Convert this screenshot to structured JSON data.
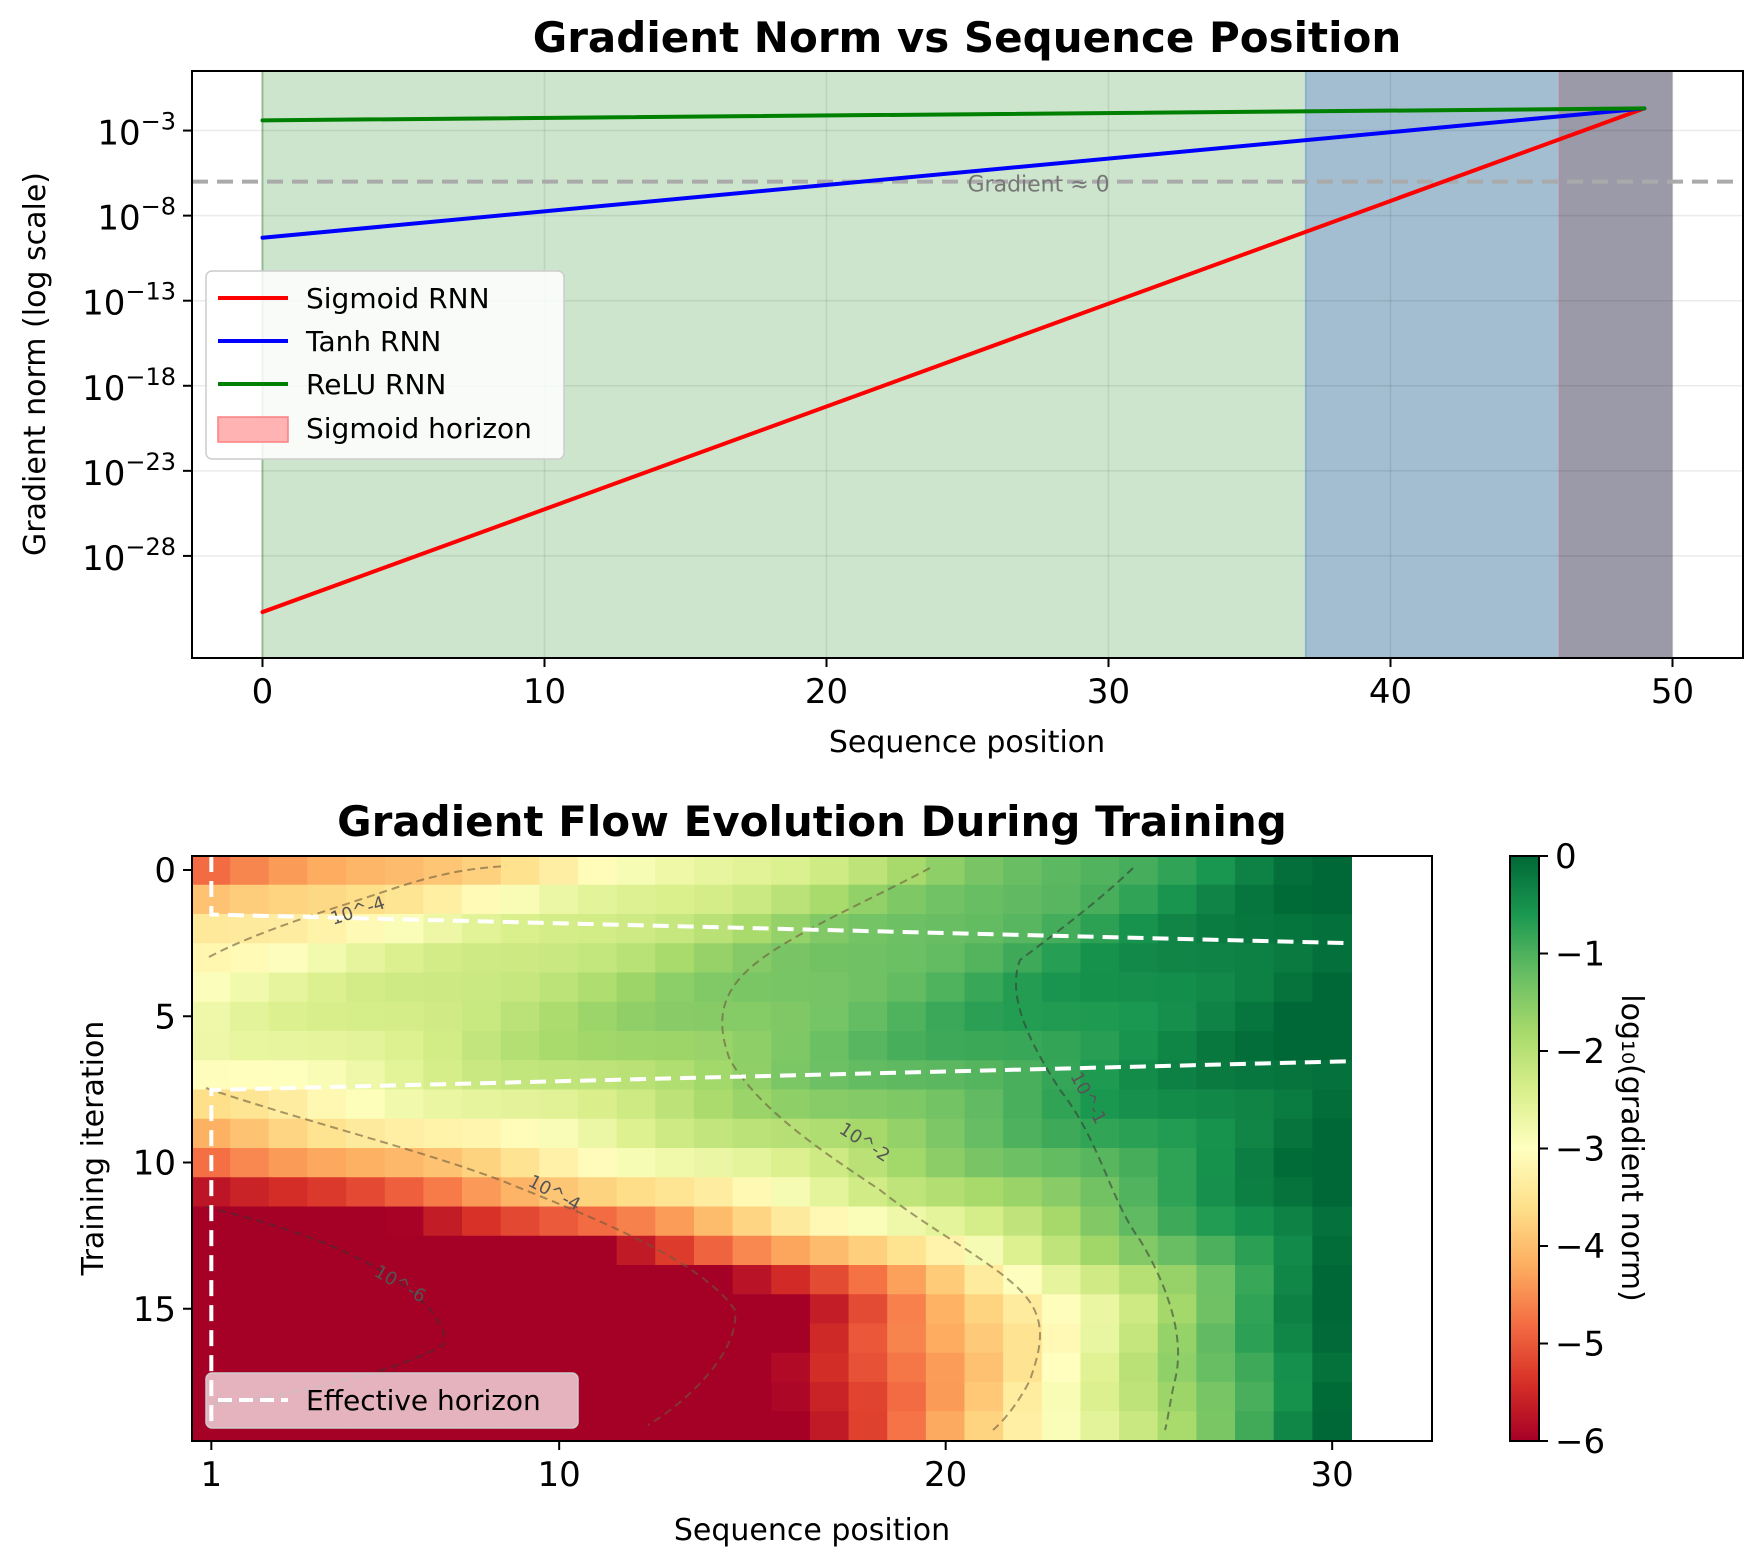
{
  "chart_data": [
    {
      "type": "line",
      "title": "Gradient Norm vs Sequence Position",
      "xlabel": "Sequence position",
      "ylabel": "Gradient norm (log scale)",
      "xlim": [
        -2.5,
        52.5
      ],
      "ylim_log10": [
        -34,
        0.5
      ],
      "yscale": "log",
      "grid": true,
      "legend_placement": "center-left",
      "xticks": [
        "0",
        "10",
        "20",
        "30",
        "40",
        "50"
      ],
      "xtick_values": [
        0,
        10,
        20,
        30,
        40,
        50
      ],
      "ytick_values_log10": [
        -3,
        -8,
        -13,
        -18,
        -23,
        -28
      ],
      "ytick_base": "10",
      "ytick_exponents": [
        "−3",
        "−8",
        "−13",
        "−18",
        "−23",
        "−28"
      ],
      "series": [
        {
          "name": "Sigmoid RNN",
          "color": "#ff0000",
          "x": [
            0,
            49
          ],
          "y_log10": [
            -31.3,
            -1.7
          ]
        },
        {
          "name": "Tanh RNN",
          "color": "#0000ff",
          "x": [
            0,
            49
          ],
          "y_log10": [
            -9.3,
            -1.7
          ]
        },
        {
          "name": "ReLU RNN",
          "color": "#008000",
          "x": [
            0,
            49
          ],
          "y_log10": [
            -2.4,
            -1.7
          ]
        }
      ],
      "horizons": [
        {
          "name": "Sigmoid horizon",
          "x": [
            46,
            50
          ],
          "color": "#ff9999"
        },
        {
          "x": [
            37,
            50
          ],
          "color": "#aec7e8"
        },
        {
          "x": [
            0,
            50
          ],
          "color": "#9fd29f"
        }
      ],
      "hline": {
        "y_log10": -6,
        "label": "Gradient ≈ 0",
        "color": "#aaaaaa"
      },
      "legend": [
        "Sigmoid RNN",
        "Tanh RNN",
        "ReLU RNN",
        "Sigmoid horizon"
      ]
    },
    {
      "type": "heatmap",
      "title": "Gradient Flow Evolution During Training",
      "xlabel": "Sequence position",
      "ylabel": "Training iteration",
      "xticks": [
        "1",
        "10",
        "20",
        "30"
      ],
      "xtick_values": [
        1,
        10,
        20,
        30
      ],
      "yticks": [
        "0",
        "5",
        "10",
        "15"
      ],
      "ytick_values": [
        0,
        5,
        10,
        15
      ],
      "columns": 30,
      "rows": 20,
      "colormap": "RdYlGn",
      "colorbar": {
        "label": "log₁₀(gradient norm)",
        "min": -6,
        "max": 0,
        "ticks": [
          "0",
          "−1",
          "−2",
          "−3",
          "−4",
          "−5",
          "−6"
        ],
        "tick_values": [
          0,
          -1,
          -2,
          -3,
          -4,
          -5,
          -6
        ]
      },
      "contour_labels": [
        "10^-4",
        "10^-4",
        "10^-2",
        "10^-1",
        "10^-6"
      ],
      "effective_horizon": {
        "name": "Effective horizon",
        "color": "#ffffff",
        "upper": {
          "x": [
            1,
            1,
            1,
            31
          ],
          "y": [
            0,
            2,
            2,
            3
          ]
        },
        "lower": {
          "x": [
            31,
            1,
            1,
            1
          ],
          "y": [
            7,
            8,
            8,
            19.5
          ]
        }
      },
      "legend": [
        "Effective horizon"
      ],
      "legend_placement": "lower-left"
    }
  ]
}
